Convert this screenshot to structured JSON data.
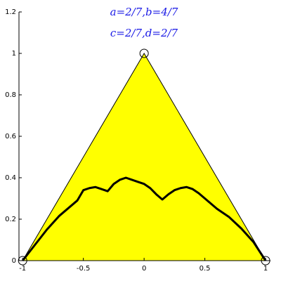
{
  "chart_data": {
    "type": "line",
    "annotations": [
      "a=2/7,b=4/7",
      "c=2/7,d=2/7"
    ],
    "xlim": [
      -1.03,
      1.04
    ],
    "ylim": [
      0,
      1.2
    ],
    "xticks": [
      -1,
      -0.5,
      0,
      0.5,
      1
    ],
    "yticks": [
      0,
      0.2,
      0.4,
      0.6,
      0.8,
      1,
      1.2
    ],
    "series": [
      {
        "color": "#ffff00",
        "x": [
          -1,
          0,
          1
        ],
        "y": [
          0,
          1,
          0
        ]
      },
      {
        "color": "#000000",
        "x": [
          -1,
          -0.9,
          -0.8,
          -0.7,
          -0.6,
          -0.55,
          -0.5,
          -0.45,
          -0.4,
          -0.35,
          -0.3,
          -0.25,
          -0.2,
          -0.15,
          -0.1,
          -0.05,
          0,
          0.05,
          0.1,
          0.15,
          0.2,
          0.25,
          0.3,
          0.35,
          0.4,
          0.45,
          0.5,
          0.55,
          0.6,
          0.65,
          0.7,
          0.8,
          0.9,
          1
        ],
        "y": [
          0,
          0.075,
          0.15,
          0.215,
          0.265,
          0.29,
          0.34,
          0.35,
          0.355,
          0.345,
          0.335,
          0.37,
          0.39,
          0.4,
          0.39,
          0.38,
          0.37,
          0.35,
          0.32,
          0.295,
          0.32,
          0.34,
          0.35,
          0.355,
          0.345,
          0.325,
          0.3,
          0.275,
          0.25,
          0.23,
          0.21,
          0.155,
          0.09,
          0
        ]
      }
    ],
    "markers": {
      "x": [
        -1,
        0,
        1
      ],
      "y": [
        0,
        1,
        0
      ]
    }
  }
}
